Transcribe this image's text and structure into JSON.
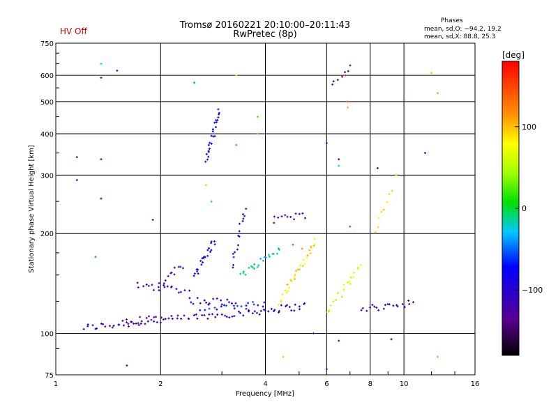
{
  "chart_data": {
    "type": "scatter",
    "title": "Tromsø 20160221 20:10:00–20:11:43",
    "subtitle": "RwPretec (8p)",
    "status_label": "HV Off",
    "stats": {
      "heading": "Phases",
      "line1": "mean, sd,O: −94.2, 19.2",
      "line2": "mean, sd,X:  88.8, 25.3"
    },
    "xlabel": "Frequency [MHz]",
    "ylabel": "Stationary phase Virtual Height [km]",
    "x_scale": "log",
    "y_scale": "log",
    "xlim": [
      1,
      16
    ],
    "ylim": [
      75,
      750
    ],
    "x_ticks": [
      "1",
      "2",
      "4",
      "6",
      "8",
      "10",
      "16"
    ],
    "x_tick_values": [
      1,
      2,
      4,
      6,
      8,
      10,
      16
    ],
    "y_ticks": [
      "75",
      "100",
      "200",
      "300",
      "400",
      "500",
      "600",
      "750"
    ],
    "y_tick_values": [
      75,
      100,
      200,
      300,
      400,
      500,
      600,
      750
    ],
    "grid": true,
    "colorbar": {
      "label": "[deg]",
      "ticks": [
        "100",
        "0",
        "−100"
      ],
      "tick_values": [
        100,
        0,
        -100
      ],
      "range": [
        -180,
        180
      ]
    },
    "traces": [
      {
        "f1": 1.2,
        "f2": 3.6,
        "h1": 104,
        "h2": 116,
        "phase": -110,
        "n": 60
      },
      {
        "f1": 3.6,
        "f2": 5.2,
        "h1": 116,
        "h2": 121,
        "phase": -105,
        "n": 25
      },
      {
        "f1": 1.55,
        "f2": 2.0,
        "h1": 108,
        "h2": 112,
        "phase": -120,
        "n": 12
      },
      {
        "f1": 1.7,
        "f2": 2.4,
        "h1": 140,
        "h2": 135,
        "phase": -115,
        "n": 18
      },
      {
        "f1": 2.4,
        "f2": 3.3,
        "h1": 126,
        "h2": 124,
        "phase": -95,
        "n": 16
      },
      {
        "f1": 2.6,
        "f2": 4.0,
        "h1": 120,
        "h2": 122,
        "phase": -70,
        "n": 20
      },
      {
        "f1": 2.0,
        "f2": 2.3,
        "h1": 140,
        "h2": 160,
        "phase": -110,
        "n": 12
      },
      {
        "f1": 2.5,
        "f2": 2.85,
        "h1": 150,
        "h2": 190,
        "phase": -85,
        "n": 22
      },
      {
        "f1": 2.7,
        "f2": 2.95,
        "h1": 330,
        "h2": 470,
        "phase": -85,
        "n": 24
      },
      {
        "f1": 3.2,
        "f2": 3.5,
        "h1": 160,
        "h2": 240,
        "phase": -110,
        "n": 16
      },
      {
        "f1": 3.4,
        "f2": 4.4,
        "h1": 150,
        "h2": 180,
        "phase": -20,
        "n": 22
      },
      {
        "f1": 4.2,
        "f2": 5.2,
        "h1": 220,
        "h2": 228,
        "phase": -110,
        "n": 12
      },
      {
        "f1": 4.4,
        "f2": 5.6,
        "h1": 125,
        "h2": 190,
        "phase": 90,
        "n": 30
      },
      {
        "f1": 6.0,
        "f2": 7.5,
        "h1": 115,
        "h2": 160,
        "phase": 60,
        "n": 20
      },
      {
        "f1": 7.5,
        "f2": 10.6,
        "h1": 118,
        "h2": 124,
        "phase": -110,
        "n": 20
      },
      {
        "f1": 8.3,
        "f2": 9.2,
        "h1": 200,
        "h2": 270,
        "phase": 90,
        "n": 8
      },
      {
        "f1": 6.2,
        "f2": 7.0,
        "h1": 570,
        "h2": 630,
        "phase": -110,
        "n": 7
      }
    ],
    "scatter": [
      {
        "f": 1.35,
        "h": 650,
        "phase": -20
      },
      {
        "f": 1.35,
        "h": 590,
        "phase": -110
      },
      {
        "f": 1.5,
        "h": 620,
        "phase": -100
      },
      {
        "f": 1.35,
        "h": 335,
        "phase": -120
      },
      {
        "f": 1.15,
        "h": 340,
        "phase": -120
      },
      {
        "f": 1.15,
        "h": 290,
        "phase": -120
      },
      {
        "f": 1.35,
        "h": 255,
        "phase": -110
      },
      {
        "f": 1.9,
        "h": 220,
        "phase": -120
      },
      {
        "f": 2.5,
        "h": 570,
        "phase": -40
      },
      {
        "f": 3.3,
        "h": 600,
        "phase": 60
      },
      {
        "f": 3.3,
        "h": 370,
        "phase": 10
      },
      {
        "f": 3.8,
        "h": 450,
        "phase": 20
      },
      {
        "f": 3.8,
        "h": 400,
        "phase": 120
      },
      {
        "f": 6.0,
        "h": 375,
        "phase": -110
      },
      {
        "f": 6.5,
        "h": 335,
        "phase": -110
      },
      {
        "f": 6.5,
        "h": 320,
        "phase": -20
      },
      {
        "f": 6.9,
        "h": 500,
        "phase": 140
      },
      {
        "f": 6.9,
        "h": 480,
        "phase": 110
      },
      {
        "f": 7.0,
        "h": 210,
        "phase": 160
      },
      {
        "f": 8.4,
        "h": 315,
        "phase": -110
      },
      {
        "f": 9.5,
        "h": 300,
        "phase": 100
      },
      {
        "f": 10.0,
        "h": 505,
        "phase": 150
      },
      {
        "f": 11.5,
        "h": 350,
        "phase": -100
      },
      {
        "f": 12.5,
        "h": 530,
        "phase": 110
      },
      {
        "f": 12.5,
        "h": 85,
        "phase": 110
      },
      {
        "f": 1.6,
        "h": 80,
        "phase": -110
      },
      {
        "f": 1.3,
        "h": 170,
        "phase": -40
      },
      {
        "f": 4.5,
        "h": 85,
        "phase": 100
      },
      {
        "f": 5.5,
        "h": 100,
        "phase": -110
      },
      {
        "f": 6.0,
        "h": 78,
        "phase": -110
      },
      {
        "f": 6.5,
        "h": 95,
        "phase": -110
      },
      {
        "f": 9.2,
        "h": 96,
        "phase": -110
      },
      {
        "f": 5.1,
        "h": 180,
        "phase": 120
      },
      {
        "f": 4.8,
        "h": 185,
        "phase": 150
      },
      {
        "f": 12.0,
        "h": 610,
        "phase": 100
      },
      {
        "f": 6.8,
        "h": 600,
        "phase": 160
      },
      {
        "f": 2.7,
        "h": 280,
        "phase": 40
      },
      {
        "f": 2.8,
        "h": 250,
        "phase": -20
      }
    ]
  }
}
